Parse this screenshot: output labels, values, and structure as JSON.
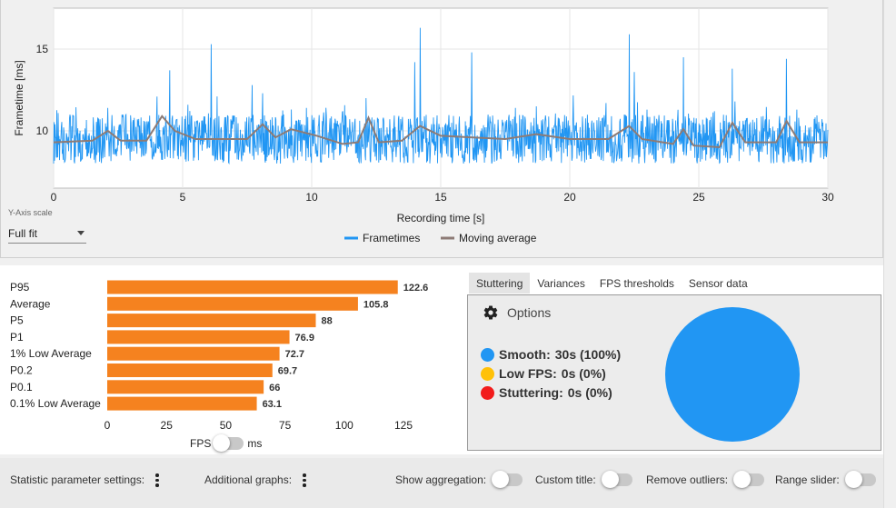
{
  "frametime_chart": {
    "chart_data": {
      "type": "line",
      "xlabel": "Recording time [s]",
      "ylabel": "Frametime [ms]",
      "xlim": [
        0,
        30
      ],
      "ylim": [
        6.5,
        17.5
      ],
      "xticks": [
        0,
        5,
        10,
        15,
        20,
        25,
        30
      ],
      "yticks": [
        10,
        15
      ],
      "grid": true,
      "legend_position": "bottom-center",
      "series": [
        {
          "name": "Frametimes",
          "color": "#2196f3",
          "baseline": 9.3,
          "noise_range": [
            8.0,
            11.0
          ],
          "spikes": [
            [
              2.1,
              11.4
            ],
            [
              4.0,
              12.1
            ],
            [
              4.5,
              13.7
            ],
            [
              5.2,
              11.6
            ],
            [
              6.1,
              15.3
            ],
            [
              7.7,
              12.8
            ],
            [
              8.1,
              12.3
            ],
            [
              9.8,
              11.4
            ],
            [
              11.2,
              11.2
            ],
            [
              12.1,
              12.0
            ],
            [
              14.0,
              14.2
            ],
            [
              14.2,
              16.3
            ],
            [
              16.2,
              14.8
            ],
            [
              17.9,
              11.4
            ],
            [
              18.7,
              11.5
            ],
            [
              21.4,
              11.7
            ],
            [
              22.3,
              15.9
            ],
            [
              22.5,
              13.6
            ],
            [
              23.0,
              11.3
            ],
            [
              24.4,
              14.5
            ],
            [
              25.6,
              11.2
            ],
            [
              26.3,
              13.8
            ],
            [
              26.4,
              11.8
            ],
            [
              27.5,
              10.9
            ],
            [
              28.4,
              14.4
            ],
            [
              28.8,
              11.3
            ]
          ]
        },
        {
          "name": "Moving average",
          "color": "#8d7b76",
          "points": [
            [
              0,
              9.3
            ],
            [
              1.5,
              9.4
            ],
            [
              2.1,
              10.0
            ],
            [
              2.6,
              9.4
            ],
            [
              3.6,
              9.4
            ],
            [
              4.2,
              10.9
            ],
            [
              4.7,
              10.0
            ],
            [
              5.5,
              9.5
            ],
            [
              7.5,
              9.5
            ],
            [
              8.1,
              10.4
            ],
            [
              8.6,
              9.6
            ],
            [
              9.2,
              10.1
            ],
            [
              10.2,
              9.7
            ],
            [
              11.2,
              9.2
            ],
            [
              11.8,
              9.3
            ],
            [
              12.2,
              10.8
            ],
            [
              12.6,
              9.3
            ],
            [
              13.5,
              9.4
            ],
            [
              14.2,
              10.3
            ],
            [
              15.0,
              9.7
            ],
            [
              17.5,
              9.5
            ],
            [
              18.7,
              9.8
            ],
            [
              20.0,
              9.5
            ],
            [
              21.5,
              9.5
            ],
            [
              22.3,
              10.3
            ],
            [
              22.8,
              9.5
            ],
            [
              24.0,
              9.2
            ],
            [
              24.4,
              10.1
            ],
            [
              24.8,
              9.1
            ],
            [
              25.8,
              9.0
            ],
            [
              26.3,
              10.5
            ],
            [
              26.8,
              9.3
            ],
            [
              28.0,
              9.3
            ],
            [
              28.4,
              10.6
            ],
            [
              28.9,
              9.3
            ],
            [
              30.0,
              9.3
            ]
          ]
        }
      ]
    }
  },
  "y_axis_scale": {
    "label": "Y-Axis scale",
    "value": "Full fit"
  },
  "stats_chart": {
    "chart_data": {
      "type": "bar",
      "orientation": "horizontal",
      "categories": [
        "P95",
        "Average",
        "P5",
        "P1",
        "1% Low Average",
        "P0.2",
        "P0.1",
        "0.1% Low Average"
      ],
      "values": [
        122.6,
        105.8,
        88,
        76.9,
        72.7,
        69.7,
        66,
        63.1
      ],
      "value_labels": [
        "122.6",
        "105.8",
        "88",
        "76.9",
        "72.7",
        "69.7",
        "66",
        "63.1"
      ],
      "xlim": [
        0,
        125
      ],
      "xticks": [
        0,
        25,
        50,
        75,
        100,
        125
      ],
      "color": "#f5821f"
    }
  },
  "unit_toggle": {
    "left": "FPS",
    "right": "ms"
  },
  "tabs": [
    "Stuttering",
    "Variances",
    "FPS thresholds",
    "Sensor data"
  ],
  "stuttering": {
    "options_label": "Options",
    "items": [
      {
        "label": "Smooth:",
        "value": "30s (100%)",
        "color": "#2196f3"
      },
      {
        "label": "Low FPS:",
        "value": "0s (0%)",
        "color": "#ffc107"
      },
      {
        "label": "Stuttering:",
        "value": "0s (0%)",
        "color": "#f21c1c"
      }
    ],
    "chart_data": {
      "type": "pie",
      "labels": [
        "Smooth",
        "Low FPS",
        "Stuttering"
      ],
      "values": [
        100,
        0,
        0
      ],
      "colors": [
        "#2196f3",
        "#ffc107",
        "#f21c1c"
      ]
    }
  },
  "footer": {
    "stat_settings": "Statistic parameter settings:",
    "additional_graphs": "Additional graphs:",
    "show_aggregation": "Show aggregation:",
    "custom_title": "Custom title:",
    "remove_outliers": "Remove outliers:",
    "range_slider": "Range slider:"
  }
}
